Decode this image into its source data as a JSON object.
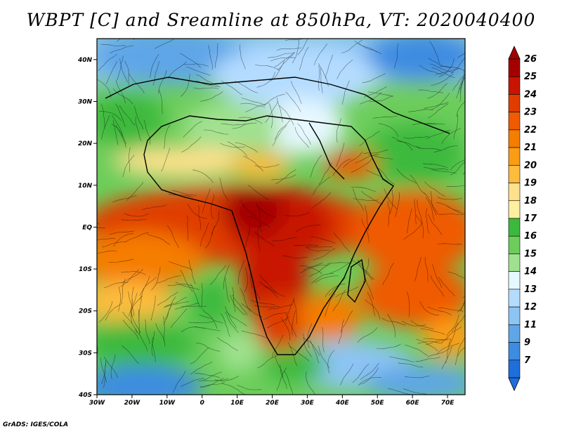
{
  "title": "WBPT [C] and Sreamline at 850hPa, VT: 2020040400",
  "credit": "GrADS: IGES/COLA",
  "map": {
    "lat_ticks": [
      "40N",
      "30N",
      "20N",
      "10N",
      "EQ",
      "10S",
      "20S",
      "30S",
      "40S"
    ],
    "lon_ticks": [
      "30W",
      "20W",
      "10W",
      "0",
      "10E",
      "20E",
      "30E",
      "40E",
      "50E",
      "60E",
      "70E"
    ],
    "extent": {
      "lon": [
        -30,
        75
      ],
      "lat": [
        -40,
        45
      ]
    }
  },
  "colorbar": {
    "labels": [
      "26",
      "25",
      "24",
      "23",
      "22",
      "21",
      "20",
      "19",
      "18",
      "17",
      "16",
      "15",
      "14",
      "13",
      "12",
      "11",
      "9",
      "7"
    ],
    "colors": [
      "#a50000",
      "#c81400",
      "#e03c00",
      "#f05a00",
      "#f57d00",
      "#fa9c14",
      "#fcbc3c",
      "#ffe08c",
      "#fff0a0",
      "#3cb93c",
      "#6ccd5a",
      "#a0e190",
      "#e6f8ff",
      "#b4dcff",
      "#8cc4f4",
      "#5ea6e8",
      "#3c8ce1",
      "#1e6edc"
    ]
  }
}
